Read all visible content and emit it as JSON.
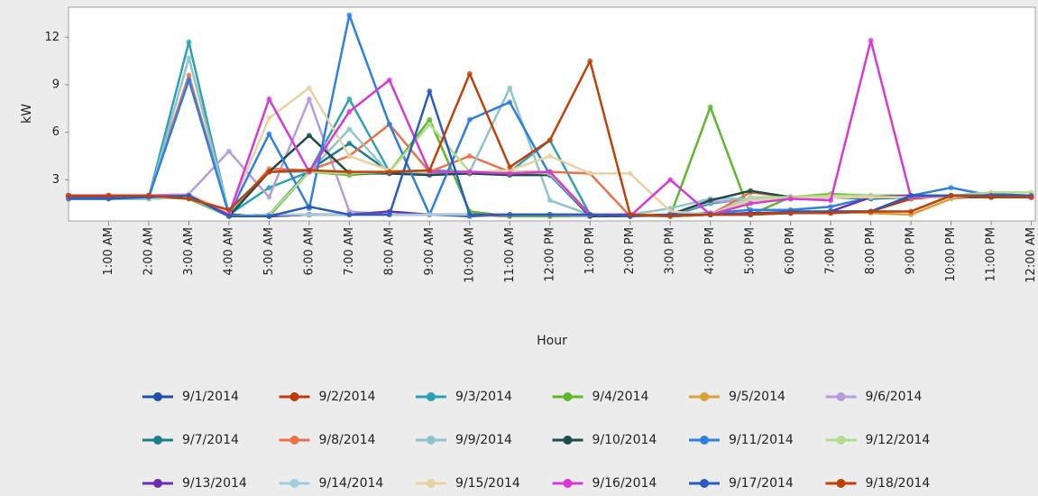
{
  "chart_data": {
    "type": "line",
    "y_label": "kW",
    "x_label": "Hour",
    "xlim": [
      0,
      24.1
    ],
    "ylim": [
      0.4,
      13.9
    ],
    "yticks": [
      3,
      6,
      9,
      12
    ],
    "xticks": [
      {
        "value": 1,
        "label": "1:00 AM"
      },
      {
        "value": 2,
        "label": "2:00 AM"
      },
      {
        "value": 3,
        "label": "3:00 AM"
      },
      {
        "value": 4,
        "label": "4:00 AM"
      },
      {
        "value": 5,
        "label": "5:00 AM"
      },
      {
        "value": 6,
        "label": "6:00 AM"
      },
      {
        "value": 7,
        "label": "7:00 AM"
      },
      {
        "value": 8,
        "label": "8:00 AM"
      },
      {
        "value": 9,
        "label": "9:00 AM"
      },
      {
        "value": 10,
        "label": "10:00 AM"
      },
      {
        "value": 11,
        "label": "11:00 AM"
      },
      {
        "value": 12,
        "label": "12:00 PM"
      },
      {
        "value": 13,
        "label": "1:00 PM"
      },
      {
        "value": 14,
        "label": "2:00 PM"
      },
      {
        "value": 15,
        "label": "3:00 PM"
      },
      {
        "value": 16,
        "label": "4:00 PM"
      },
      {
        "value": 17,
        "label": "5:00 PM"
      },
      {
        "value": 18,
        "label": "6:00 PM"
      },
      {
        "value": 19,
        "label": "7:00 PM"
      },
      {
        "value": 20,
        "label": "8:00 PM"
      },
      {
        "value": 21,
        "label": "9:00 PM"
      },
      {
        "value": 22,
        "label": "10:00 PM"
      },
      {
        "value": 23,
        "label": "11:00 PM"
      },
      {
        "value": 24,
        "label": "12:00 AM"
      }
    ],
    "x": [
      0,
      1,
      2,
      3,
      4,
      5,
      6,
      7,
      8,
      9,
      10,
      11,
      12,
      13,
      14,
      15,
      16,
      17,
      18,
      19,
      20,
      21,
      22,
      23,
      24
    ],
    "series": [
      {
        "name": "9/1/2014",
        "color": "#1f4fa8",
        "values": [
          2,
          2,
          2,
          1.9,
          0.8,
          0.7,
          0.8,
          0.8,
          0.8,
          0.8,
          0.7,
          0.8,
          0.8,
          0.8,
          0.7,
          0.7,
          0.8,
          0.8,
          0.9,
          1,
          1,
          1.9,
          2,
          2.1,
          2
        ]
      },
      {
        "name": "9/2/2014",
        "color": "#c0390b",
        "values": [
          1.9,
          2,
          2,
          1.9,
          0.7,
          0.7,
          0.8,
          0.8,
          0.8,
          0.8,
          0.8,
          0.7,
          0.7,
          0.8,
          0.7,
          0.7,
          0.8,
          0.9,
          0.9,
          0.9,
          1,
          1.8,
          2,
          1.9,
          1.9
        ]
      },
      {
        "name": "9/3/2014",
        "color": "#2ea0b5",
        "values": [
          1.8,
          1.8,
          1.9,
          11.7,
          0.8,
          2.5,
          3.5,
          8.1,
          3.5,
          3.6,
          3.5,
          3.5,
          5.5,
          0.8,
          0.7,
          0.7,
          1.5,
          1.8,
          1.9,
          1.9,
          1.9,
          1.9,
          1.9,
          2,
          1.9
        ]
      },
      {
        "name": "9/4/2014",
        "color": "#5cb82d",
        "values": [
          1.9,
          1.9,
          1.9,
          1.8,
          0.7,
          0.7,
          3.5,
          3.3,
          3.5,
          6.8,
          1,
          0.7,
          0.7,
          0.7,
          0.7,
          0.7,
          7.6,
          0.8,
          1.9,
          2.1,
          2,
          2,
          1.9,
          1.9,
          1.9
        ]
      },
      {
        "name": "9/5/2014",
        "color": "#d9a13a",
        "values": [
          1.8,
          1.8,
          1.8,
          1.9,
          0.7,
          0.8,
          0.8,
          0.8,
          0.8,
          0.8,
          0.8,
          0.8,
          0.8,
          0.8,
          0.8,
          0.8,
          0.8,
          0.9,
          1,
          1,
          0.9,
          0.8,
          1.8,
          2,
          1.9
        ]
      },
      {
        "name": "9/6/2014",
        "color": "#b59ddb",
        "values": [
          1.8,
          1.9,
          2,
          2.1,
          4.8,
          1.9,
          8.1,
          1,
          0.8,
          0.8,
          0.8,
          0.8,
          0.8,
          0.7,
          0.7,
          0.8,
          1.6,
          1.7,
          1.8,
          1.9,
          1.8,
          1.9,
          1.9,
          1.9,
          1.9
        ]
      },
      {
        "name": "9/7/2014",
        "color": "#1a7f8a",
        "values": [
          1.8,
          1.8,
          1.8,
          1.9,
          0.7,
          0.8,
          3.6,
          5.3,
          3.5,
          3.4,
          3.5,
          3.4,
          3.5,
          0.8,
          0.7,
          0.7,
          0.8,
          1.7,
          1.8,
          1.9,
          1.8,
          1.9,
          2,
          1.9,
          1.9
        ]
      },
      {
        "name": "9/8/2014",
        "color": "#e8734a",
        "values": [
          2,
          2,
          2,
          9.6,
          0.8,
          3.7,
          3.6,
          4.5,
          6.5,
          3.5,
          4.5,
          3.5,
          3.5,
          3.4,
          0.7,
          0.7,
          0.8,
          2.2,
          1.9,
          2,
          1.9,
          2,
          1.9,
          2,
          1.9
        ]
      },
      {
        "name": "9/9/2014",
        "color": "#8fc4cc",
        "values": [
          1.8,
          1.8,
          1.8,
          10.7,
          0.9,
          3.5,
          3.5,
          6.2,
          3.4,
          3.4,
          3.5,
          8.8,
          1.7,
          0.8,
          0.8,
          1.2,
          1.8,
          1.8,
          1.9,
          1.9,
          1.9,
          1.9,
          2,
          2,
          2
        ]
      },
      {
        "name": "9/10/2014",
        "color": "#1d4d4a",
        "values": [
          1.8,
          1.8,
          1.8,
          1.9,
          0.7,
          3.5,
          5.8,
          3.4,
          3.4,
          3.3,
          3.4,
          3.3,
          3.3,
          0.7,
          0.7,
          0.8,
          1.7,
          2.3,
          1.9,
          1.9,
          1.9,
          1.9,
          1.9,
          1.9,
          1.9
        ]
      },
      {
        "name": "9/11/2014",
        "color": "#2f7fe0",
        "values": [
          1.9,
          1.9,
          1.9,
          9.3,
          0.8,
          5.9,
          1.2,
          13.4,
          6.5,
          0.8,
          6.8,
          7.9,
          3.3,
          0.8,
          0.7,
          0.8,
          0.9,
          1.1,
          1.1,
          1.3,
          1.9,
          2,
          2.5,
          2,
          2
        ]
      },
      {
        "name": "9/12/2014",
        "color": "#b3dc8a",
        "values": [
          1.8,
          1.8,
          1.8,
          1.9,
          0.7,
          0.8,
          3.5,
          3.4,
          3.5,
          6.5,
          3.5,
          3.5,
          3.4,
          0.8,
          0.7,
          0.7,
          0.8,
          1.9,
          1.9,
          2,
          2,
          1.9,
          2,
          2.2,
          2.2
        ]
      },
      {
        "name": "9/13/2014",
        "color": "#6a2fb5",
        "values": [
          1.9,
          1.9,
          1.9,
          1.9,
          0.7,
          0.7,
          0.8,
          0.8,
          1,
          0.8,
          0.8,
          0.8,
          0.8,
          0.8,
          0.8,
          0.7,
          0.8,
          0.9,
          0.9,
          1,
          1.9,
          2,
          2,
          2,
          1.9
        ]
      },
      {
        "name": "9/14/2014",
        "color": "#9fcfd8",
        "values": [
          1.8,
          1.8,
          1.8,
          1.9,
          0.7,
          0.8,
          0.8,
          0.8,
          0.8,
          0.8,
          0.8,
          0.8,
          0.8,
          0.8,
          0.7,
          0.7,
          0.8,
          1.8,
          1.8,
          1.9,
          1.9,
          1.9,
          2,
          2,
          2
        ]
      },
      {
        "name": "9/15/2014",
        "color": "#e6d3a3",
        "values": [
          1.8,
          1.8,
          1.9,
          2.1,
          0.9,
          6.9,
          8.8,
          4.5,
          3.6,
          3.5,
          3.5,
          3.6,
          4.5,
          3.4,
          3.4,
          1,
          0.8,
          1.7,
          1.8,
          1.9,
          1.9,
          1.9,
          1.9,
          2,
          2
        ]
      },
      {
        "name": "9/16/2014",
        "color": "#d63ad6",
        "values": [
          2,
          2,
          2,
          2,
          0.8,
          8.1,
          3.5,
          7.3,
          9.3,
          3.5,
          3.5,
          3.4,
          3.5,
          0.8,
          0.7,
          3,
          0.8,
          1.5,
          1.8,
          1.7,
          11.8,
          1.9,
          2,
          2,
          1.9
        ]
      },
      {
        "name": "9/17/2014",
        "color": "#2a5cbf",
        "values": [
          1.8,
          1.8,
          1.9,
          2,
          0.7,
          0.7,
          1.3,
          0.8,
          0.8,
          8.6,
          0.8,
          0.8,
          0.8,
          0.8,
          0.7,
          0.8,
          0.8,
          0.8,
          1,
          1,
          1,
          2,
          2,
          2,
          2
        ]
      },
      {
        "name": "9/18/2014",
        "color": "#c0400a",
        "values": [
          2,
          2,
          2,
          1.8,
          1.1,
          3.5,
          3.6,
          3.5,
          3.5,
          3.6,
          9.7,
          3.8,
          5.5,
          10.5,
          0.8,
          0.7,
          0.8,
          0.8,
          0.9,
          0.9,
          1,
          1,
          2,
          1.9,
          1.9
        ]
      }
    ]
  }
}
